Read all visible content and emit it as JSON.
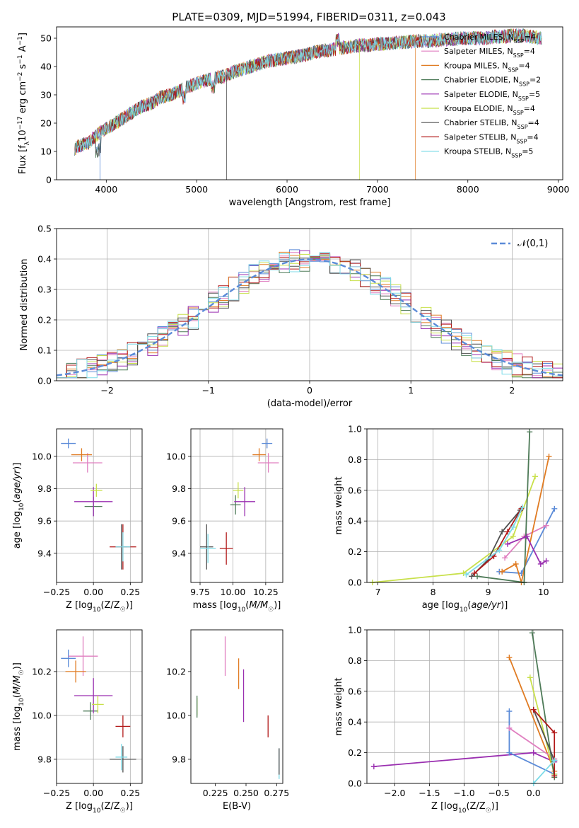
{
  "figure": {
    "title": "PLATE=0309, MJD=51994, FIBERID=0311, z=0.043"
  },
  "colors": {
    "Chabrier MILES": "#5b8bd8",
    "Salpeter MILES": "#e07fc0",
    "Kroupa MILES": "#e07b22",
    "Chabrier ELODIE": "#4d7a57",
    "Salpeter ELODIE": "#9a2fb0",
    "Kroupa ELODIE": "#c8e04a",
    "Chabrier STELIB": "#505050",
    "Salpeter STELIB": "#b21a1a",
    "Kroupa STELIB": "#7ddbe8",
    "normal": "#5b8bd8"
  },
  "chart_data": [
    {
      "id": "spectrum",
      "type": "line",
      "xlabel": "wavelength [Angstrom, rest frame]",
      "ylabel": "Flux [f_λ 10^-17 erg cm^-2 s^-1 A^-1]",
      "xlim": [
        3450,
        9050
      ],
      "ylim": [
        0,
        54
      ],
      "xticks": [
        4000,
        5000,
        6000,
        7000,
        8000,
        9000
      ],
      "yticks": [
        0,
        10,
        20,
        30,
        40,
        50
      ],
      "grid": false,
      "legend_position": "right",
      "x": [
        3650,
        3700,
        3800,
        3900,
        4000,
        4100,
        4200,
        4300,
        4400,
        4500,
        4600,
        4700,
        4800,
        4900,
        5000,
        5100,
        5200,
        5300,
        5400,
        5500,
        5600,
        5700,
        5800,
        5900,
        6000,
        6100,
        6200,
        6300,
        6400,
        6500,
        6600,
        6700,
        6800,
        6900,
        7000,
        7100,
        7200,
        7300,
        7400,
        7500,
        7600,
        7700,
        7800,
        7900,
        8000,
        8100,
        8200,
        8300,
        8400,
        8500,
        8600,
        8700,
        8800
      ],
      "flux": [
        11,
        12,
        13,
        16,
        18,
        20,
        22,
        24,
        26,
        27,
        29,
        30,
        31,
        33,
        34,
        35,
        36,
        36.5,
        38,
        39,
        40,
        41,
        42,
        42.5,
        43,
        43.5,
        44,
        45,
        45.5,
        46,
        46.5,
        47,
        47.5,
        47.5,
        48,
        48,
        48.5,
        48.5,
        49,
        49,
        49,
        49.5,
        49.5,
        50,
        50,
        50,
        50,
        50.5,
        50.5,
        51,
        51,
        50.5,
        50
      ],
      "series": [
        {
          "name": "Chabrier MILES",
          "nssp": "4"
        },
        {
          "name": "Salpeter MILES",
          "nssp": "4"
        },
        {
          "name": "Kroupa MILES",
          "nssp": "4",
          "cut_at": 7420
        },
        {
          "name": "Chabrier ELODIE",
          "nssp": "2"
        },
        {
          "name": "Salpeter ELODIE",
          "nssp": "5"
        },
        {
          "name": "Kroupa ELODIE",
          "nssp": "4"
        },
        {
          "name": "Chabrier STELIB",
          "nssp": "4"
        },
        {
          "name": "Salpeter STELIB",
          "nssp": "4"
        },
        {
          "name": "Kroupa STELIB",
          "nssp": "5"
        }
      ]
    },
    {
      "id": "residuals",
      "type": "line",
      "xlabel": "(data-model)/error",
      "ylabel": "Normed distribution",
      "xlim": [
        -2.5,
        2.5
      ],
      "ylim": [
        0,
        0.5
      ],
      "xticks": [
        -2,
        -1,
        0,
        1,
        2
      ],
      "yticks": [
        0.0,
        0.1,
        0.2,
        0.3,
        0.4,
        0.5
      ],
      "grid": true,
      "legend_position": "top-right",
      "reference": {
        "name": "𝒩(0,1)",
        "mean": 0,
        "sigma": 1
      },
      "bin_width": 0.1
    },
    {
      "id": "age_vs_Z",
      "type": "scatter",
      "xlabel": "Z [log10(Z/Z☉)]",
      "ylabel": "age [log10(age/yr)]",
      "xlim": [
        -0.25,
        0.33
      ],
      "ylim": [
        9.22,
        10.17
      ],
      "xticks": [
        -0.25,
        0.0,
        0.25
      ],
      "yticks": [
        9.4,
        9.6,
        9.8,
        10.0
      ],
      "grid": true,
      "points": [
        {
          "name": "Chabrier MILES",
          "x": -0.17,
          "y": 10.08,
          "xerr": 0.05,
          "yerr": 0.03
        },
        {
          "name": "Salpeter MILES",
          "x": -0.04,
          "y": 9.96,
          "xerr": 0.1,
          "yerr": 0.06
        },
        {
          "name": "Kroupa MILES",
          "x": -0.08,
          "y": 10.01,
          "xerr": 0.07,
          "yerr": 0.04
        },
        {
          "name": "Chabrier ELODIE",
          "x": 0.0,
          "y": 9.69,
          "xerr": 0.06,
          "yerr": 0.06
        },
        {
          "name": "Salpeter ELODIE",
          "x": 0.0,
          "y": 9.72,
          "xerr": 0.13,
          "yerr": 0.09
        },
        {
          "name": "Kroupa ELODIE",
          "x": 0.02,
          "y": 9.79,
          "xerr": 0.04,
          "yerr": 0.04
        },
        {
          "name": "Chabrier STELIB",
          "x": 0.19,
          "y": 9.44,
          "xerr": 0.04,
          "yerr": 0.14
        },
        {
          "name": "Salpeter STELIB",
          "x": 0.2,
          "y": 9.44,
          "xerr": 0.09,
          "yerr": 0.14
        },
        {
          "name": "Kroupa STELIB",
          "x": 0.2,
          "y": 9.44,
          "xerr": 0.05,
          "yerr": 0.09
        }
      ]
    },
    {
      "id": "age_vs_mass",
      "type": "scatter",
      "xlabel": "mass [log10(M/M☉)]",
      "ylabel": "",
      "xlim": [
        9.68,
        10.38
      ],
      "ylim": [
        9.22,
        10.17
      ],
      "xticks": [
        9.75,
        10.0,
        10.25
      ],
      "yticks": [
        9.4,
        9.6,
        9.8,
        10.0
      ],
      "grid": true,
      "points": [
        {
          "name": "Chabrier MILES",
          "x": 10.26,
          "y": 10.08,
          "xerr": 0.04,
          "yerr": 0.03
        },
        {
          "name": "Salpeter MILES",
          "x": 10.27,
          "y": 9.96,
          "xerr": 0.08,
          "yerr": 0.06
        },
        {
          "name": "Kroupa MILES",
          "x": 10.2,
          "y": 10.01,
          "xerr": 0.05,
          "yerr": 0.04
        },
        {
          "name": "Chabrier ELODIE",
          "x": 10.02,
          "y": 9.7,
          "xerr": 0.04,
          "yerr": 0.06
        },
        {
          "name": "Salpeter ELODIE",
          "x": 10.09,
          "y": 9.72,
          "xerr": 0.08,
          "yerr": 0.09
        },
        {
          "name": "Kroupa ELODIE",
          "x": 10.04,
          "y": 9.79,
          "xerr": 0.04,
          "yerr": 0.05
        },
        {
          "name": "Chabrier STELIB",
          "x": 9.8,
          "y": 9.44,
          "xerr": 0.05,
          "yerr": 0.14
        },
        {
          "name": "Salpeter STELIB",
          "x": 9.95,
          "y": 9.43,
          "xerr": 0.05,
          "yerr": 0.1
        },
        {
          "name": "Kroupa STELIB",
          "x": 9.81,
          "y": 9.43,
          "xerr": 0.06,
          "yerr": 0.09
        }
      ]
    },
    {
      "id": "mass_weight_vs_age",
      "type": "line",
      "xlabel": "age [log10(age/yr)]",
      "ylabel": "mass weight",
      "xlim": [
        6.8,
        10.35
      ],
      "ylim": [
        0,
        1
      ],
      "xticks": [
        7,
        8,
        9,
        10
      ],
      "yticks": [
        0.0,
        0.2,
        0.4,
        0.6,
        0.8,
        1.0
      ],
      "grid": true,
      "series": [
        {
          "name": "Kroupa ELODIE",
          "x": [
            6.9,
            8.55,
            9.45,
            9.85
          ],
          "y": [
            0.0,
            0.06,
            0.3,
            0.69
          ]
        },
        {
          "name": "Chabrier MILES",
          "x": [
            9.2,
            9.6,
            10.2
          ],
          "y": [
            0.07,
            0.06,
            0.48
          ]
        },
        {
          "name": "Salpeter MILES",
          "x": [
            9.3,
            9.65,
            10.05
          ],
          "y": [
            0.16,
            0.3,
            0.37
          ]
        },
        {
          "name": "Kroupa MILES",
          "x": [
            9.25,
            9.5,
            9.6,
            10.1
          ],
          "y": [
            0.07,
            0.12,
            0.0,
            0.82
          ]
        },
        {
          "name": "Chabrier ELODIE",
          "x": [
            8.8,
            9.65,
            9.75
          ],
          "y": [
            0.04,
            0.0,
            0.98
          ]
        },
        {
          "name": "Salpeter ELODIE",
          "x": [
            9.35,
            9.7,
            9.95,
            10.05
          ],
          "y": [
            0.25,
            0.3,
            0.12,
            0.14
          ]
        },
        {
          "name": "Chabrier STELIB",
          "x": [
            8.7,
            9.0,
            9.25,
            9.58
          ],
          "y": [
            0.04,
            0.15,
            0.33,
            0.47
          ]
        },
        {
          "name": "Salpeter STELIB",
          "x": [
            8.75,
            9.1,
            9.35,
            9.6
          ],
          "y": [
            0.06,
            0.17,
            0.33,
            0.48
          ]
        },
        {
          "name": "Kroupa STELIB",
          "x": [
            8.6,
            9.2,
            9.45,
            9.62
          ],
          "y": [
            0.05,
            0.21,
            0.36,
            0.49
          ]
        }
      ]
    },
    {
      "id": "mass_vs_Z",
      "type": "scatter",
      "xlabel": "Z [log10(Z/Z☉)]",
      "ylabel": "mass [log10(M/M☉)]",
      "xlim": [
        -0.25,
        0.33
      ],
      "ylim": [
        9.69,
        10.39
      ],
      "xticks": [
        -0.25,
        0.0,
        0.25
      ],
      "yticks": [
        9.8,
        10.0,
        10.2
      ],
      "grid": true,
      "points": [
        {
          "name": "Chabrier MILES",
          "x": -0.17,
          "y": 10.26,
          "xerr": 0.05,
          "yerr": 0.04
        },
        {
          "name": "Salpeter MILES",
          "x": -0.07,
          "y": 10.27,
          "xerr": 0.1,
          "yerr": 0.09
        },
        {
          "name": "Kroupa MILES",
          "x": -0.12,
          "y": 10.2,
          "xerr": 0.07,
          "yerr": 0.05
        },
        {
          "name": "Chabrier ELODIE",
          "x": -0.02,
          "y": 10.02,
          "xerr": 0.05,
          "yerr": 0.04
        },
        {
          "name": "Salpeter ELODIE",
          "x": 0.0,
          "y": 10.09,
          "xerr": 0.13,
          "yerr": 0.08
        },
        {
          "name": "Kroupa ELODIE",
          "x": 0.03,
          "y": 10.05,
          "xerr": 0.04,
          "yerr": 0.04
        },
        {
          "name": "Chabrier STELIB",
          "x": 0.2,
          "y": 9.8,
          "xerr": 0.09,
          "yerr": 0.06
        },
        {
          "name": "Salpeter STELIB",
          "x": 0.2,
          "y": 9.95,
          "xerr": 0.05,
          "yerr": 0.05
        },
        {
          "name": "Kroupa STELIB",
          "x": 0.19,
          "y": 9.81,
          "xerr": 0.04,
          "yerr": 0.06
        }
      ]
    },
    {
      "id": "mass_vs_ebv",
      "type": "scatter",
      "xlabel": "E(B-V)",
      "ylabel": "",
      "xlim": [
        0.205,
        0.28
      ],
      "ylim": [
        9.69,
        10.39
      ],
      "xticks": [
        0.225,
        0.25,
        0.275
      ],
      "yticks": [
        9.8,
        10.0,
        10.2
      ],
      "grid": false,
      "points": [
        {
          "name": "Kroupa ELODIE",
          "x": 0.21,
          "y": 10.04,
          "xerr": 0,
          "yerr": 0.04
        },
        {
          "name": "Chabrier ELODIE",
          "x": 0.21,
          "y": 10.04,
          "xerr": 0,
          "yerr": 0.05
        },
        {
          "name": "Salpeter MILES",
          "x": 0.233,
          "y": 10.27,
          "xerr": 0,
          "yerr": 0.09
        },
        {
          "name": "Kroupa MILES",
          "x": 0.244,
          "y": 10.19,
          "xerr": 0,
          "yerr": 0.07
        },
        {
          "name": "Salpeter ELODIE",
          "x": 0.248,
          "y": 10.09,
          "xerr": 0,
          "yerr": 0.12
        },
        {
          "name": "Salpeter STELIB",
          "x": 0.268,
          "y": 9.95,
          "xerr": 0,
          "yerr": 0.05
        },
        {
          "name": "Kroupa STELIB",
          "x": 0.277,
          "y": 9.78,
          "xerr": 0,
          "yerr": 0.07
        },
        {
          "name": "Chabrier STELIB",
          "x": 0.277,
          "y": 9.79,
          "xerr": 0,
          "yerr": 0.06
        }
      ]
    },
    {
      "id": "mass_weight_vs_Z",
      "type": "line",
      "xlabel": "Z [log10(Z/Z☉)]",
      "ylabel": "mass weight",
      "xlim": [
        -2.4,
        0.42
      ],
      "ylim": [
        0,
        1
      ],
      "xticks": [
        -2.0,
        -1.5,
        -1.0,
        -0.5,
        0.0
      ],
      "yticks": [
        0.0,
        0.2,
        0.4,
        0.6,
        0.8,
        1.0
      ],
      "grid": true,
      "series": [
        {
          "name": "Salpeter ELODIE",
          "x": [
            -2.3,
            0.0,
            0.3
          ],
          "y": [
            0.11,
            0.2,
            0.14
          ]
        },
        {
          "name": "Kroupa MILES",
          "x": [
            -0.35,
            0.3
          ],
          "y": [
            0.82,
            0.08
          ]
        },
        {
          "name": "Chabrier MILES",
          "x": [
            -0.35,
            -0.35,
            0.3
          ],
          "y": [
            0.47,
            0.2,
            0.06
          ]
        },
        {
          "name": "Salpeter MILES",
          "x": [
            -0.35,
            0.3
          ],
          "y": [
            0.36,
            0.16
          ]
        },
        {
          "name": "Kroupa ELODIE",
          "x": [
            -0.05,
            0.3
          ],
          "y": [
            0.69,
            0.06
          ]
        },
        {
          "name": "Chabrier ELODIE",
          "x": [
            -0.02,
            0.3
          ],
          "y": [
            0.98,
            0.04
          ]
        },
        {
          "name": "Chabrier STELIB",
          "x": [
            0.0,
            0.3
          ],
          "y": [
            0.48,
            0.15
          ]
        },
        {
          "name": "Salpeter STELIB",
          "x": [
            0.0,
            0.3,
            0.3
          ],
          "y": [
            0.48,
            0.33,
            0.05
          ]
        },
        {
          "name": "Kroupa STELIB",
          "x": [
            0.0,
            0.3
          ],
          "y": [
            0.0,
            0.15
          ]
        }
      ]
    }
  ]
}
